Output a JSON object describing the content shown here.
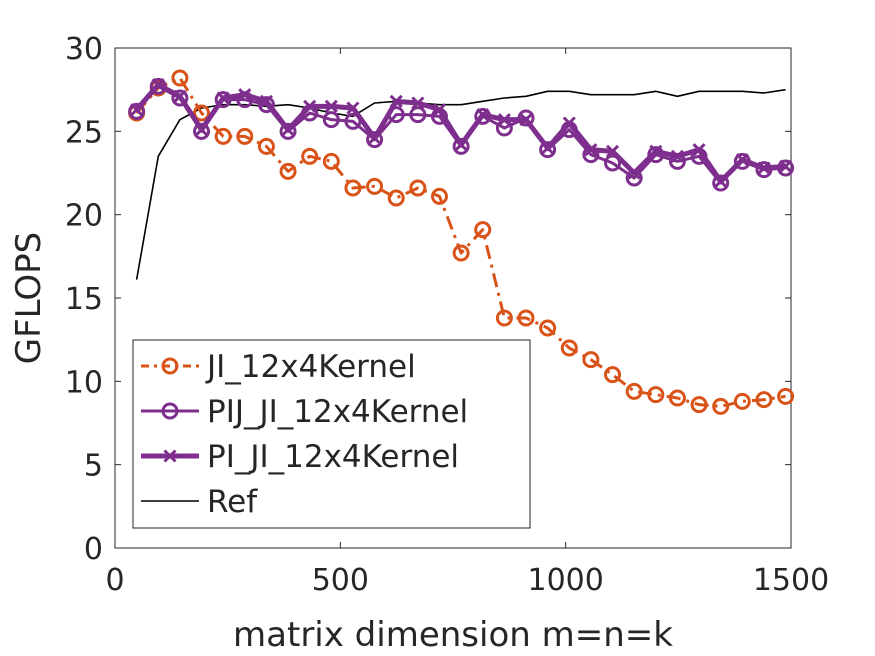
{
  "chart_data": {
    "type": "line",
    "title": "",
    "xlabel": "matrix dimension m=n=k",
    "ylabel": "GFLOPS",
    "xlim": [
      0,
      1500
    ],
    "ylim": [
      0,
      30
    ],
    "xticks": [
      0,
      500,
      1000,
      1500
    ],
    "yticks": [
      0,
      5,
      10,
      15,
      20,
      25,
      30
    ],
    "grid": false,
    "legend_position": "bottom-left",
    "series": [
      {
        "name": "JI_12x4Kernel",
        "color": "#D95319",
        "line_style": "dash-dot",
        "marker": "circle",
        "x": [
          48,
          96,
          144,
          192,
          240,
          288,
          336,
          384,
          432,
          480,
          528,
          576,
          624,
          672,
          720,
          768,
          816,
          864,
          912,
          960,
          1008,
          1056,
          1104,
          1152,
          1200,
          1248,
          1296,
          1344,
          1392,
          1440,
          1488
        ],
        "y": [
          26.1,
          27.6,
          28.2,
          26.1,
          24.7,
          24.7,
          24.1,
          22.6,
          23.5,
          23.2,
          21.6,
          21.7,
          21.0,
          21.6,
          21.1,
          17.7,
          19.1,
          13.8,
          13.8,
          13.2,
          12.0,
          11.3,
          10.4,
          9.4,
          9.2,
          9.0,
          8.6,
          8.5,
          8.8,
          8.9,
          9.1
        ]
      },
      {
        "name": "PIJ_JI_12x4Kernel",
        "color": "#7E2F8E",
        "line_style": "solid",
        "marker": "circle",
        "x": [
          48,
          96,
          144,
          192,
          240,
          288,
          336,
          384,
          432,
          480,
          528,
          576,
          624,
          672,
          720,
          768,
          816,
          864,
          912,
          960,
          1008,
          1056,
          1104,
          1152,
          1200,
          1248,
          1296,
          1344,
          1392,
          1440,
          1488
        ],
        "y": [
          26.2,
          27.7,
          27.0,
          25.0,
          26.9,
          26.9,
          26.6,
          25.0,
          26.1,
          25.7,
          25.6,
          24.5,
          26.0,
          26.0,
          25.9,
          24.1,
          25.9,
          25.2,
          25.8,
          23.9,
          25.1,
          23.6,
          23.1,
          22.2,
          23.6,
          23.2,
          23.5,
          21.9,
          23.2,
          22.7,
          22.8
        ]
      },
      {
        "name": "PI_JI_12x4Kernel",
        "color": "#7E2F8E",
        "line_style": "solid-thick",
        "marker": "x",
        "x": [
          48,
          96,
          144,
          192,
          240,
          288,
          336,
          384,
          432,
          480,
          528,
          576,
          624,
          672,
          720,
          768,
          816,
          864,
          912,
          960,
          1008,
          1056,
          1104,
          1152,
          1200,
          1248,
          1296,
          1344,
          1392,
          1440,
          1488
        ],
        "y": [
          26.3,
          27.8,
          27.1,
          25.1,
          27.0,
          27.2,
          26.8,
          25.1,
          26.5,
          26.5,
          26.4,
          24.6,
          26.8,
          26.7,
          26.3,
          24.2,
          26.0,
          25.7,
          25.7,
          24.0,
          25.5,
          23.9,
          23.8,
          22.5,
          23.8,
          23.5,
          23.9,
          22.0,
          23.3,
          22.8,
          22.9
        ]
      },
      {
        "name": "Ref",
        "color": "#000000",
        "line_style": "thin-solid",
        "marker": "none",
        "x": [
          48,
          96,
          144,
          192,
          240,
          288,
          336,
          384,
          432,
          480,
          528,
          576,
          624,
          672,
          720,
          768,
          816,
          864,
          912,
          960,
          1008,
          1056,
          1104,
          1152,
          1200,
          1248,
          1296,
          1344,
          1392,
          1440,
          1488
        ],
        "y": [
          16.1,
          23.5,
          25.7,
          26.4,
          26.6,
          26.6,
          26.5,
          26.6,
          26.4,
          26.1,
          25.9,
          26.7,
          26.8,
          26.7,
          26.6,
          26.6,
          26.8,
          27.0,
          27.1,
          27.4,
          27.4,
          27.2,
          27.2,
          27.2,
          27.4,
          27.1,
          27.4,
          27.4,
          27.4,
          27.3,
          27.5
        ]
      }
    ]
  }
}
